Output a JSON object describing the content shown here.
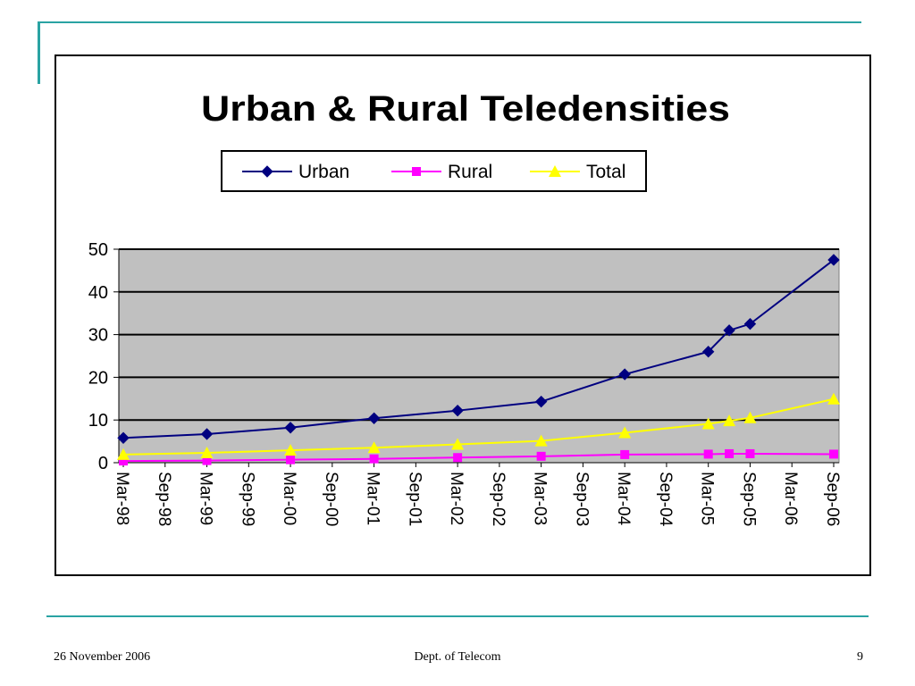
{
  "footer": {
    "date": "26 November 2006",
    "center": "Dept. of Telecom",
    "page_number": "9"
  },
  "colors": {
    "urban": "#000080",
    "rural": "#ff00ff",
    "total": "#ffff00",
    "plot_bg": "#c0c0c0",
    "accent": "#2aa3a3"
  },
  "chart_data": {
    "type": "line",
    "title": "Urban & Rural Teledensities",
    "xlabel": "",
    "ylabel": "",
    "ylim": [
      0,
      50
    ],
    "y_ticks": [
      "0",
      "10",
      "20",
      "30",
      "40",
      "50"
    ],
    "x_tick_labels": [
      "Mar-98",
      "Sep-98",
      "Mar-99",
      "Sep-99",
      "Mar-00",
      "Sep-00",
      "Mar-01",
      "Sep-01",
      "Mar-02",
      "Sep-02",
      "Mar-03",
      "Sep-03",
      "Mar-04",
      "Sep-04",
      "Mar-05",
      "Sep-05",
      "Mar-06",
      "Sep-06"
    ],
    "grid": true,
    "legend_position": "top",
    "x": [
      "Mar-98",
      "Mar-99",
      "Mar-00",
      "Mar-01",
      "Mar-02",
      "Mar-03",
      "Mar-04",
      "Mar-05",
      "Jun-05",
      "Sep-05",
      "Sep-06"
    ],
    "series": [
      {
        "name": "Urban",
        "marker": "diamond",
        "values": [
          5.8,
          6.7,
          8.2,
          10.4,
          12.2,
          14.3,
          20.7,
          26.0,
          31.0,
          32.5,
          47.5
        ]
      },
      {
        "name": "Rural",
        "marker": "square",
        "values": [
          0.4,
          0.5,
          0.7,
          0.9,
          1.2,
          1.5,
          1.9,
          2.0,
          2.1,
          2.1,
          2.0
        ]
      },
      {
        "name": "Total",
        "marker": "triangle",
        "values": [
          1.9,
          2.3,
          2.9,
          3.5,
          4.3,
          5.1,
          7.0,
          9.1,
          9.8,
          10.5,
          14.9
        ]
      }
    ]
  }
}
